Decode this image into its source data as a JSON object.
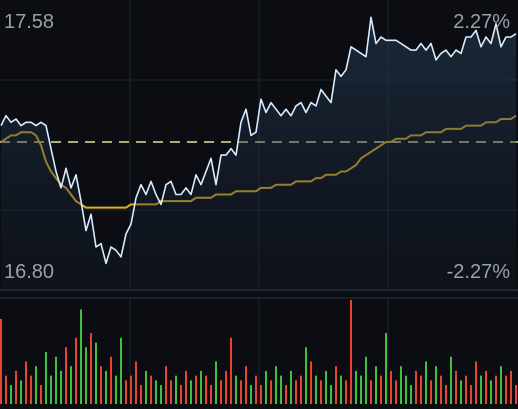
{
  "chart_data": [
    {
      "type": "line",
      "price_axis": {
        "high_label": "17.58",
        "low_label": "16.80",
        "ylim": [
          16.8,
          17.58
        ]
      },
      "percent_axis": {
        "high_label": "2.27%",
        "low_label": "-2.27%"
      },
      "reference_price": 17.19,
      "grid": true,
      "legend": "none",
      "x": [
        0,
        5,
        10,
        15,
        20,
        25,
        30,
        35,
        40,
        45,
        50,
        55,
        60,
        65,
        70,
        75,
        80,
        85,
        90,
        95,
        100,
        105,
        110,
        115,
        120,
        125,
        130,
        135,
        140,
        145,
        150,
        155,
        160,
        165,
        170,
        175,
        180,
        185,
        190,
        195,
        200,
        205,
        210,
        215,
        220,
        225,
        230,
        235,
        240,
        245,
        250,
        255,
        260,
        265,
        270,
        275,
        280,
        285,
        290,
        295,
        300,
        305,
        310,
        315,
        320,
        325,
        330,
        335,
        340,
        345,
        350,
        355,
        360,
        365,
        370,
        375,
        380,
        385,
        390,
        395,
        400,
        405,
        410,
        415,
        420,
        425,
        430,
        435,
        440,
        445,
        450,
        455,
        460,
        465,
        470,
        475,
        480,
        485,
        490,
        495,
        500,
        505,
        510,
        515
      ],
      "series": [
        {
          "values": [
            17.24,
            17.27,
            17.25,
            17.26,
            17.24,
            17.25,
            17.25,
            17.24,
            17.25,
            17.24,
            17.17,
            17.1,
            17.05,
            17.11,
            17.05,
            17.09,
            17.01,
            16.92,
            16.97,
            16.87,
            16.88,
            16.82,
            16.87,
            16.86,
            16.84,
            16.91,
            16.94,
            17.02,
            17.06,
            17.03,
            17.07,
            17.03,
            17.0,
            17.06,
            17.07,
            17.03,
            17.03,
            17.05,
            17.03,
            17.09,
            17.06,
            17.1,
            17.14,
            17.06,
            17.15,
            17.15,
            17.17,
            17.15,
            17.25,
            17.29,
            17.21,
            17.22,
            17.32,
            17.28,
            17.31,
            17.29,
            17.27,
            17.29,
            17.27,
            17.3,
            17.31,
            17.28,
            17.31,
            17.3,
            17.35,
            17.33,
            17.31,
            17.41,
            17.39,
            17.41,
            17.48,
            17.47,
            17.46,
            17.45,
            17.57,
            17.49,
            17.51,
            17.5,
            17.5,
            17.5,
            17.49,
            17.48,
            17.47,
            17.47,
            17.49,
            17.47,
            17.49,
            17.44,
            17.46,
            17.47,
            17.45,
            17.47,
            17.46,
            17.51,
            17.51,
            17.53,
            17.48,
            17.51,
            17.49,
            17.55,
            17.48,
            17.51,
            17.51,
            17.52
          ],
          "color": "#d8ecff"
        },
        {
          "values": [
            17.19,
            17.2,
            17.21,
            17.21,
            17.22,
            17.22,
            17.22,
            17.21,
            17.18,
            17.13,
            17.1,
            17.08,
            17.06,
            17.05,
            17.03,
            17.01,
            17.0,
            16.99,
            16.99,
            16.99,
            16.99,
            16.99,
            16.99,
            16.99,
            16.99,
            16.99,
            17.0,
            17.0,
            17.0,
            17.0,
            17.0,
            17.0,
            17.01,
            17.01,
            17.01,
            17.01,
            17.01,
            17.01,
            17.01,
            17.02,
            17.02,
            17.02,
            17.02,
            17.03,
            17.03,
            17.03,
            17.03,
            17.04,
            17.04,
            17.04,
            17.04,
            17.04,
            17.05,
            17.05,
            17.05,
            17.06,
            17.06,
            17.06,
            17.06,
            17.07,
            17.07,
            17.07,
            17.07,
            17.08,
            17.08,
            17.09,
            17.09,
            17.09,
            17.1,
            17.1,
            17.11,
            17.12,
            17.14,
            17.15,
            17.16,
            17.17,
            17.18,
            17.19,
            17.19,
            17.2,
            17.2,
            17.2,
            17.21,
            17.21,
            17.21,
            17.22,
            17.22,
            17.22,
            17.22,
            17.23,
            17.23,
            17.23,
            17.23,
            17.24,
            17.24,
            17.24,
            17.24,
            17.25,
            17.25,
            17.25,
            17.26,
            17.26,
            17.26,
            17.27
          ],
          "color": "#e0b020"
        }
      ],
      "reference_line_color": "#e6e0a0"
    },
    {
      "type": "bar",
      "x": [
        0,
        5,
        10,
        15,
        20,
        25,
        30,
        35,
        40,
        45,
        50,
        55,
        60,
        65,
        70,
        75,
        80,
        85,
        90,
        95,
        100,
        105,
        110,
        115,
        120,
        125,
        130,
        135,
        140,
        145,
        150,
        155,
        160,
        165,
        170,
        175,
        180,
        185,
        190,
        195,
        200,
        205,
        210,
        215,
        220,
        225,
        230,
        235,
        240,
        245,
        250,
        255,
        260,
        265,
        270,
        275,
        280,
        285,
        290,
        295,
        300,
        305,
        310,
        315,
        320,
        325,
        330,
        335,
        340,
        345,
        350,
        355,
        360,
        365,
        370,
        375,
        380,
        385,
        390,
        395,
        400,
        405,
        410,
        415,
        420,
        425,
        430,
        435,
        440,
        445,
        450,
        455,
        460,
        465,
        470,
        475,
        480,
        485,
        490,
        495,
        500,
        505,
        510,
        515
      ],
      "values": [
        90,
        30,
        20,
        35,
        25,
        45,
        30,
        40,
        20,
        55,
        30,
        50,
        35,
        60,
        40,
        70,
        100,
        60,
        75,
        65,
        40,
        35,
        50,
        30,
        70,
        25,
        30,
        45,
        20,
        35,
        30,
        25,
        20,
        40,
        25,
        30,
        20,
        35,
        25,
        30,
        35,
        30,
        20,
        45,
        25,
        35,
        70,
        30,
        25,
        40,
        20,
        30,
        20,
        35,
        25,
        40,
        30,
        20,
        35,
        25,
        30,
        60,
        45,
        30,
        25,
        35,
        20,
        40,
        30,
        25,
        110,
        35,
        30,
        50,
        25,
        40,
        30,
        75,
        35,
        25,
        40,
        30,
        20,
        35,
        30,
        45,
        25,
        40,
        30,
        20,
        50,
        35,
        25,
        30,
        20,
        45,
        30,
        35,
        25,
        30,
        40,
        30,
        35,
        20
      ],
      "up_color": "#3cc23c",
      "down_color": "#e8442e"
    }
  ]
}
